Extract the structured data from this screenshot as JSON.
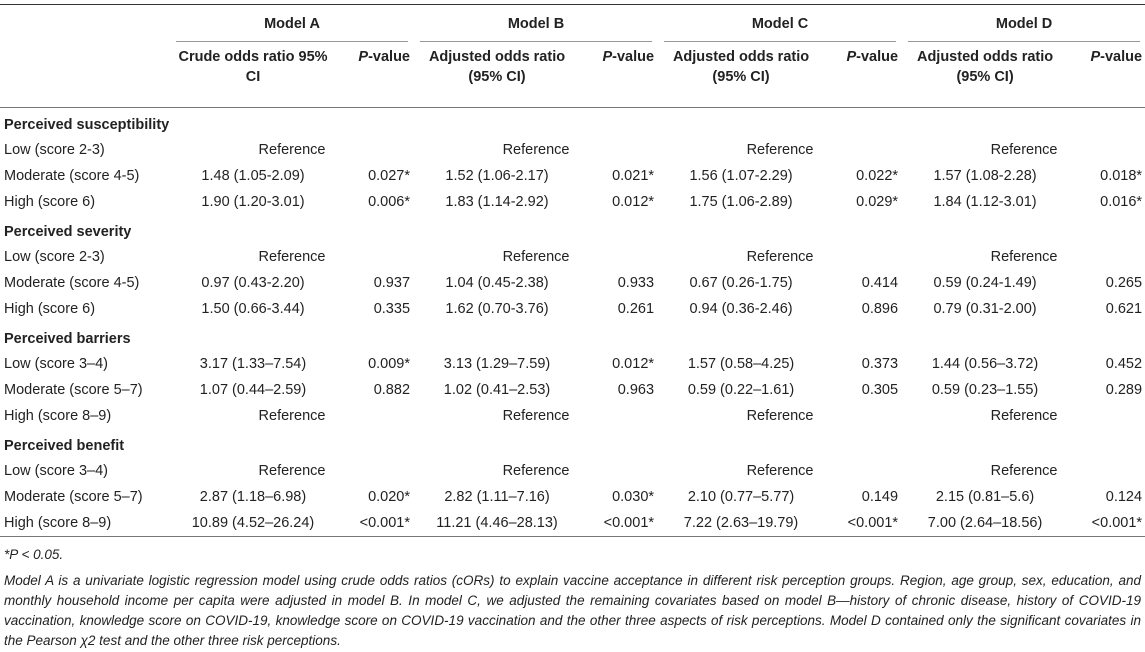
{
  "table": {
    "models": [
      "Model A",
      "Model B",
      "Model C",
      "Model D"
    ],
    "subheaders": [
      {
        "or_label": "Crude odds ratio 95% CI",
        "p_prefix": "P",
        "p_suffix": "-value"
      },
      {
        "or_label": "Adjusted odds ratio (95% CI)",
        "p_prefix": "P",
        "p_suffix": "-value"
      },
      {
        "or_label": "Adjusted odds ratio (95% CI)",
        "p_prefix": "P",
        "p_suffix": "-value"
      },
      {
        "or_label": "Adjusted odds ratio (95% CI)",
        "p_prefix": "P",
        "p_suffix": "-value"
      }
    ],
    "sections": [
      {
        "title": "Perceived susceptibility",
        "rows": [
          {
            "label": "Low (score 2-3)",
            "ref": "Reference"
          },
          {
            "label": "Moderate (score 4-5)",
            "cells": [
              [
                "1.48 (1.05-2.09)",
                "0.027*"
              ],
              [
                "1.52 (1.06-2.17)",
                "0.021*"
              ],
              [
                "1.56 (1.07-2.29)",
                "0.022*"
              ],
              [
                "1.57 (1.08-2.28)",
                "0.018*"
              ]
            ]
          },
          {
            "label": "High (score 6)",
            "cells": [
              [
                "1.90 (1.20-3.01)",
                "0.006*"
              ],
              [
                "1.83 (1.14-2.92)",
                "0.012*"
              ],
              [
                "1.75 (1.06-2.89)",
                "0.029*"
              ],
              [
                "1.84 (1.12-3.01)",
                "0.016*"
              ]
            ]
          }
        ]
      },
      {
        "title": "Perceived severity",
        "rows": [
          {
            "label": "Low (score 2-3)",
            "ref": "Reference"
          },
          {
            "label": "Moderate (score 4-5)",
            "cells": [
              [
                "0.97 (0.43-2.20)",
                "0.937"
              ],
              [
                "1.04 (0.45-2.38)",
                "0.933"
              ],
              [
                "0.67 (0.26-1.75)",
                "0.414"
              ],
              [
                "0.59 (0.24-1.49)",
                "0.265"
              ]
            ]
          },
          {
            "label": "High (score 6)",
            "cells": [
              [
                "1.50 (0.66-3.44)",
                "0.335"
              ],
              [
                "1.62 (0.70-3.76)",
                "0.261"
              ],
              [
                "0.94 (0.36-2.46)",
                "0.896"
              ],
              [
                "0.79 (0.31-2.00)",
                "0.621"
              ]
            ]
          }
        ]
      },
      {
        "title": "Perceived barriers",
        "rows": [
          {
            "label": "Low (score 3–4)",
            "cells": [
              [
                "3.17 (1.33–7.54)",
                "0.009*"
              ],
              [
                "3.13 (1.29–7.59)",
                "0.012*"
              ],
              [
                "1.57 (0.58–4.25)",
                "0.373"
              ],
              [
                "1.44 (0.56–3.72)",
                "0.452"
              ]
            ]
          },
          {
            "label": "Moderate (score 5–7)",
            "cells": [
              [
                "1.07 (0.44–2.59)",
                "0.882"
              ],
              [
                "1.02 (0.41–2.53)",
                "0.963"
              ],
              [
                "0.59 (0.22–1.61)",
                "0.305"
              ],
              [
                "0.59 (0.23–1.55)",
                "0.289"
              ]
            ]
          },
          {
            "label": "High (score 8–9)",
            "ref": "Reference"
          }
        ]
      },
      {
        "title": "Perceived benefit",
        "rows": [
          {
            "label": "Low (score 3–4)",
            "ref": "Reference"
          },
          {
            "label": "Moderate (score 5–7)",
            "cells": [
              [
                "2.87 (1.18–6.98)",
                "0.020*"
              ],
              [
                "2.82 (1.11–7.16)",
                "0.030*"
              ],
              [
                "2.10 (0.77–5.77)",
                "0.149"
              ],
              [
                "2.15 (0.81–5.6)",
                "0.124"
              ]
            ]
          },
          {
            "label": "High (score 8–9)",
            "cells": [
              [
                "10.89 (4.52–26.24)",
                "<0.001*"
              ],
              [
                "11.21 (4.46–28.13)",
                "<0.001*"
              ],
              [
                "7.22 (2.63–19.79)",
                "<0.001*"
              ],
              [
                "7.00 (2.64–18.56)",
                "<0.001*"
              ]
            ]
          }
        ]
      }
    ]
  },
  "notes": {
    "significance": "*P < 0.05.",
    "description": "Model A is a univariate logistic regression model using crude odds ratios (cORs) to explain vaccine acceptance in different risk perception groups. Region, age group, sex, education, and monthly household income per capita were adjusted in model B. In model C, we adjusted the remaining covariates based on model B—history of chronic disease, history of COVID-19 vaccination, knowledge score on COVID-19, knowledge score on COVID-19 vaccination and the other three aspects of risk perceptions. Model D contained only the significant covariates in the Pearson χ2 test and the other three risk perceptions."
  }
}
